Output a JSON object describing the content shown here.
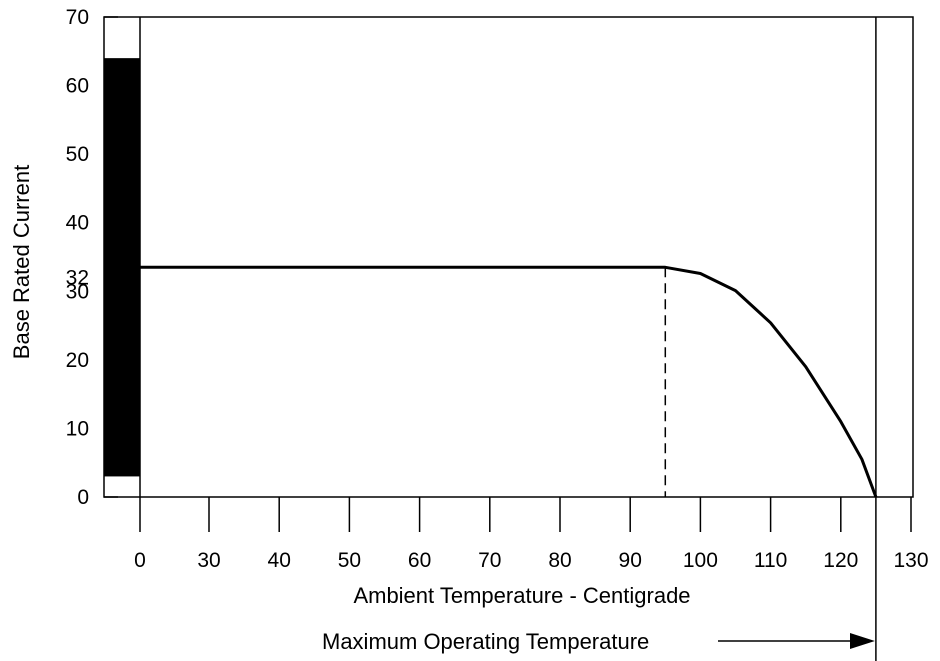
{
  "chart_data": {
    "type": "line",
    "title": "",
    "xlabel": "Ambient Temperature - Centigrade",
    "ylabel": "Base Rated Current",
    "x_ticks": [
      "0",
      "30",
      "40",
      "50",
      "60",
      "70",
      "80",
      "90",
      "100",
      "110",
      "120",
      "130"
    ],
    "y_ticks": [
      "0",
      "10",
      "20",
      "30",
      "32",
      "40",
      "50",
      "60",
      "70"
    ],
    "ylim": [
      0,
      70
    ],
    "grid": false,
    "legend": "none",
    "series": [
      {
        "points": [
          {
            "x": 0,
            "y": 33.5
          },
          {
            "x": 95,
            "y": 33.5
          },
          {
            "x": 100,
            "y": 32.6
          },
          {
            "x": 105,
            "y": 30.1
          },
          {
            "x": 110,
            "y": 25.4
          },
          {
            "x": 115,
            "y": 19.0
          },
          {
            "x": 120,
            "y": 11.0
          },
          {
            "x": 123,
            "y": 5.5
          },
          {
            "x": 125,
            "y": 0
          }
        ]
      }
    ],
    "bar": {
      "y_from": 3,
      "y_to": 64
    },
    "dashed_marker": {
      "x": 95,
      "y": 33.5
    },
    "max_temperature": {
      "x": 125
    },
    "annotation": "Maximum Operating Temperature",
    "color": "#000000"
  }
}
